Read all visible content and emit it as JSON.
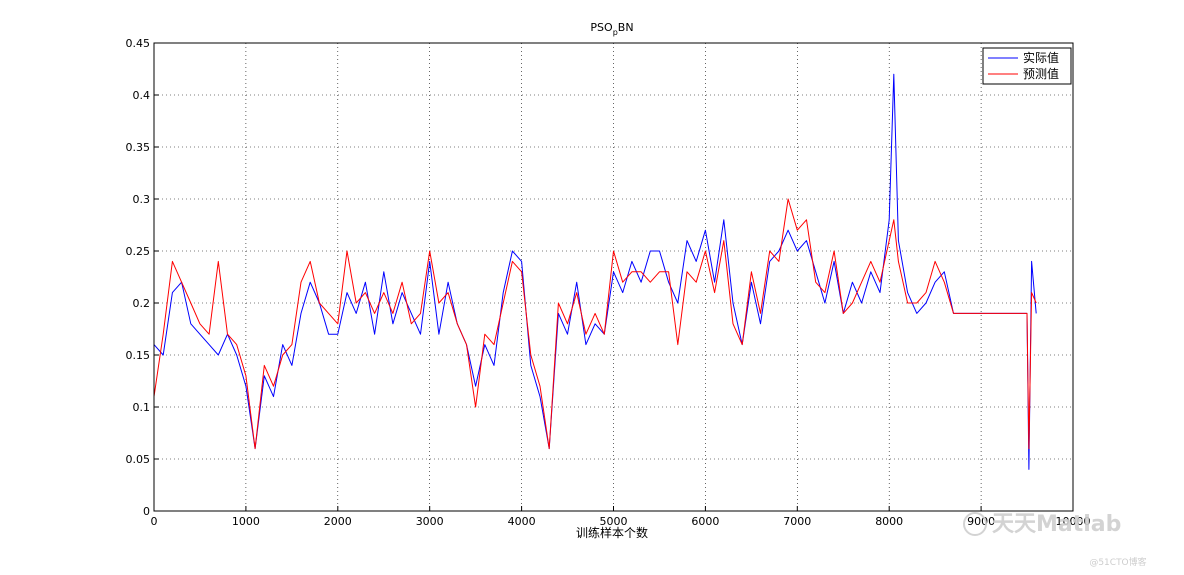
{
  "chart_data": {
    "type": "line",
    "title_main": "PSO",
    "title_sub": "p",
    "title_rest": "BN",
    "xlabel": "训练样本个数",
    "ylabel": "",
    "xlim": [
      0,
      10000
    ],
    "ylim": [
      0,
      0.45
    ],
    "xticks": [
      "0",
      "1000",
      "2000",
      "3000",
      "4000",
      "5000",
      "6000",
      "7000",
      "8000",
      "9000",
      "10000"
    ],
    "yticks": [
      "0",
      "0.05",
      "0.1",
      "0.15",
      "0.2",
      "0.25",
      "0.3",
      "0.35",
      "0.4",
      "0.45"
    ],
    "grid": true,
    "legend_position": "top-right",
    "series": [
      {
        "name": "实际值",
        "color": "#0000ff",
        "x": [
          0,
          100,
          200,
          300,
          400,
          500,
          600,
          700,
          800,
          900,
          1000,
          1100,
          1200,
          1300,
          1400,
          1500,
          1600,
          1700,
          1800,
          1900,
          2000,
          2100,
          2200,
          2300,
          2400,
          2500,
          2600,
          2700,
          2800,
          2900,
          3000,
          3100,
          3200,
          3300,
          3400,
          3500,
          3600,
          3700,
          3800,
          3900,
          4000,
          4100,
          4200,
          4300,
          4400,
          4500,
          4600,
          4700,
          4800,
          4900,
          5000,
          5100,
          5200,
          5300,
          5400,
          5500,
          5600,
          5700,
          5800,
          5900,
          6000,
          6100,
          6200,
          6300,
          6400,
          6500,
          6600,
          6700,
          6800,
          6900,
          7000,
          7100,
          7200,
          7300,
          7400,
          7500,
          7600,
          7700,
          7800,
          7900,
          8000,
          8050,
          8100,
          8200,
          8300,
          8400,
          8500,
          8600,
          8700,
          9000,
          9400,
          9500,
          9520,
          9550,
          9600
        ],
        "y": [
          0.16,
          0.15,
          0.21,
          0.22,
          0.18,
          0.17,
          0.16,
          0.15,
          0.17,
          0.15,
          0.12,
          0.06,
          0.13,
          0.11,
          0.16,
          0.14,
          0.19,
          0.22,
          0.2,
          0.17,
          0.17,
          0.21,
          0.19,
          0.22,
          0.17,
          0.23,
          0.18,
          0.21,
          0.19,
          0.17,
          0.24,
          0.17,
          0.22,
          0.18,
          0.16,
          0.12,
          0.16,
          0.14,
          0.21,
          0.25,
          0.24,
          0.14,
          0.11,
          0.06,
          0.19,
          0.17,
          0.22,
          0.16,
          0.18,
          0.17,
          0.23,
          0.21,
          0.24,
          0.22,
          0.25,
          0.25,
          0.22,
          0.2,
          0.26,
          0.24,
          0.27,
          0.22,
          0.28,
          0.2,
          0.16,
          0.22,
          0.18,
          0.24,
          0.25,
          0.27,
          0.25,
          0.26,
          0.23,
          0.2,
          0.24,
          0.19,
          0.22,
          0.2,
          0.23,
          0.21,
          0.28,
          0.42,
          0.26,
          0.21,
          0.19,
          0.2,
          0.22,
          0.23,
          0.19,
          0.19,
          0.19,
          0.19,
          0.04,
          0.24,
          0.19
        ]
      },
      {
        "name": "预测值",
        "color": "#ff0000",
        "x": [
          0,
          100,
          200,
          300,
          400,
          500,
          600,
          700,
          800,
          900,
          1000,
          1100,
          1200,
          1300,
          1400,
          1500,
          1600,
          1700,
          1800,
          1900,
          2000,
          2100,
          2200,
          2300,
          2400,
          2500,
          2600,
          2700,
          2800,
          2900,
          3000,
          3100,
          3200,
          3300,
          3400,
          3500,
          3600,
          3700,
          3800,
          3900,
          4000,
          4100,
          4200,
          4300,
          4400,
          4500,
          4600,
          4700,
          4800,
          4900,
          5000,
          5100,
          5200,
          5300,
          5400,
          5500,
          5600,
          5700,
          5800,
          5900,
          6000,
          6100,
          6200,
          6300,
          6400,
          6500,
          6600,
          6700,
          6800,
          6900,
          7000,
          7100,
          7200,
          7300,
          7400,
          7500,
          7600,
          7700,
          7800,
          7900,
          8000,
          8050,
          8100,
          8200,
          8300,
          8400,
          8500,
          8600,
          8700,
          9000,
          9400,
          9500,
          9520,
          9550,
          9600
        ],
        "y": [
          0.11,
          0.17,
          0.24,
          0.22,
          0.2,
          0.18,
          0.17,
          0.24,
          0.17,
          0.16,
          0.13,
          0.06,
          0.14,
          0.12,
          0.15,
          0.16,
          0.22,
          0.24,
          0.2,
          0.19,
          0.18,
          0.25,
          0.2,
          0.21,
          0.19,
          0.21,
          0.19,
          0.22,
          0.18,
          0.19,
          0.25,
          0.2,
          0.21,
          0.18,
          0.16,
          0.1,
          0.17,
          0.16,
          0.2,
          0.24,
          0.23,
          0.15,
          0.12,
          0.06,
          0.2,
          0.18,
          0.21,
          0.17,
          0.19,
          0.17,
          0.25,
          0.22,
          0.23,
          0.23,
          0.22,
          0.23,
          0.23,
          0.16,
          0.23,
          0.22,
          0.25,
          0.21,
          0.26,
          0.18,
          0.16,
          0.23,
          0.19,
          0.25,
          0.24,
          0.3,
          0.27,
          0.28,
          0.22,
          0.21,
          0.25,
          0.19,
          0.2,
          0.22,
          0.24,
          0.22,
          0.26,
          0.28,
          0.24,
          0.2,
          0.2,
          0.21,
          0.24,
          0.22,
          0.19,
          0.19,
          0.19,
          0.19,
          0.06,
          0.21,
          0.2
        ]
      }
    ]
  },
  "watermark": {
    "main": "天天Matlab",
    "sub": "@51CTO博客"
  }
}
